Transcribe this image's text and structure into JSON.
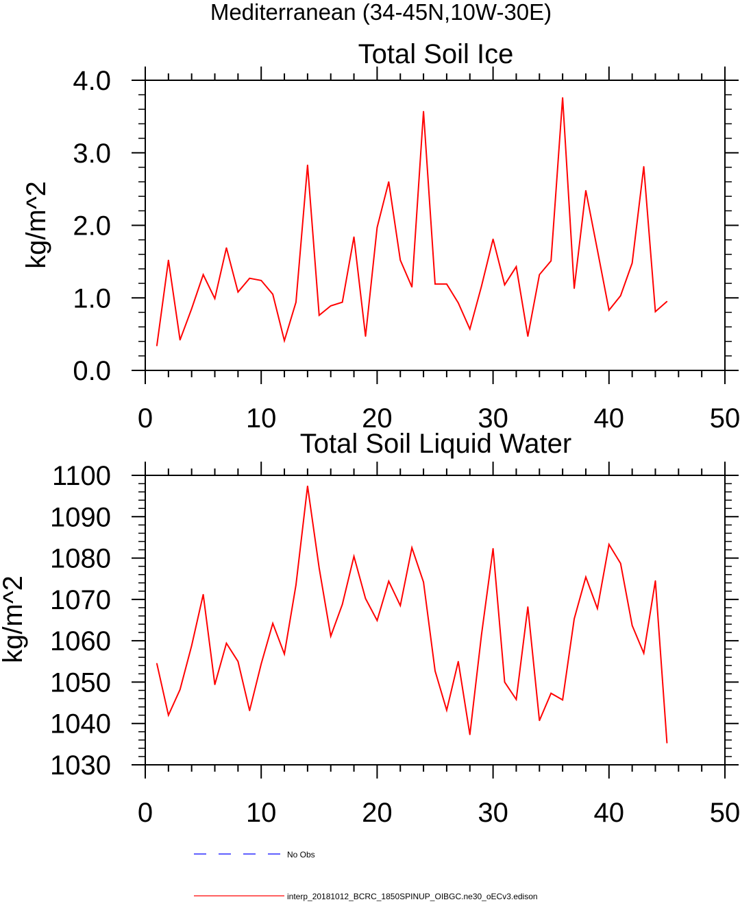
{
  "figure_title": "Mediterranean (34-45N,10W-30E)",
  "colors": {
    "model_line": "#ff0000",
    "obs_line": "#0000ff",
    "axes": "#000000",
    "background": "#ffffff"
  },
  "chart_data": [
    {
      "type": "line",
      "title": "Total Soil Ice",
      "xlabel": "",
      "ylabel": "kg/m^2",
      "xlim": [
        0,
        50
      ],
      "ylim": [
        0,
        4
      ],
      "xticks": [
        "0",
        "10",
        "20",
        "30",
        "40",
        "50"
      ],
      "yticks": [
        "0.0",
        "1.0",
        "2.0",
        "3.0",
        "4.0"
      ],
      "grid": false,
      "series": [
        {
          "name": "interp_20181012_BCRC_1850SPINUP_OIBGC.ne30_oECv3.edison",
          "color": "#ff0000",
          "x": [
            1,
            2,
            3,
            4,
            5,
            6,
            7,
            8,
            9,
            10,
            11,
            12,
            13,
            14,
            15,
            16,
            17,
            18,
            19,
            20,
            21,
            22,
            23,
            24,
            25,
            26,
            27,
            28,
            29,
            30,
            31,
            32,
            33,
            34,
            35,
            36,
            37,
            38,
            39,
            40,
            41,
            42,
            43,
            44,
            45
          ],
          "values": [
            0.34,
            1.52,
            0.42,
            0.85,
            1.32,
            0.99,
            1.69,
            1.08,
            1.27,
            1.24,
            1.05,
            0.41,
            0.94,
            2.83,
            0.76,
            0.89,
            0.94,
            1.84,
            0.47,
            1.97,
            2.6,
            1.52,
            1.15,
            3.57,
            1.19,
            1.19,
            0.93,
            0.57,
            1.16,
            1.81,
            1.18,
            1.43,
            0.47,
            1.32,
            1.51,
            3.76,
            1.13,
            2.48,
            1.66,
            0.83,
            1.03,
            1.48,
            2.81,
            0.81,
            0.95
          ]
        }
      ]
    },
    {
      "type": "line",
      "title": "Total Soil Liquid Water",
      "xlabel": "",
      "ylabel": "kg/m^2",
      "xlim": [
        0,
        50
      ],
      "ylim": [
        1030,
        1100
      ],
      "xticks": [
        "0",
        "10",
        "20",
        "30",
        "40",
        "50"
      ],
      "yticks": [
        "1030",
        "1040",
        "1050",
        "1060",
        "1070",
        "1080",
        "1090",
        "1100"
      ],
      "grid": false,
      "series": [
        {
          "name": "interp_20181012_BCRC_1850SPINUP_OIBGC.ne30_oECv3.edison",
          "color": "#ff0000",
          "x": [
            1,
            2,
            3,
            4,
            5,
            6,
            7,
            8,
            9,
            10,
            11,
            12,
            13,
            14,
            15,
            16,
            17,
            18,
            19,
            20,
            21,
            22,
            23,
            24,
            25,
            26,
            27,
            28,
            29,
            30,
            31,
            32,
            33,
            34,
            35,
            36,
            37,
            38,
            39,
            40,
            41,
            42,
            43,
            44,
            45
          ],
          "values": [
            1054.5,
            1042.0,
            1048.2,
            1058.8,
            1071.2,
            1049.4,
            1059.4,
            1055.0,
            1043.1,
            1054.4,
            1064.2,
            1056.8,
            1073.5,
            1097.4,
            1077.6,
            1061.1,
            1068.8,
            1080.4,
            1070.2,
            1064.9,
            1074.4,
            1068.5,
            1082.5,
            1074.2,
            1052.7,
            1043.2,
            1055.0,
            1037.3,
            1061.4,
            1082.3,
            1050.0,
            1045.8,
            1068.2,
            1040.7,
            1047.3,
            1045.7,
            1065.3,
            1075.4,
            1067.8,
            1083.3,
            1078.7,
            1063.7,
            1057.0,
            1074.5,
            1035.3
          ]
        }
      ]
    }
  ],
  "legend": {
    "placement": "bottom",
    "entries": [
      {
        "label": "No Obs",
        "color": "#0000ff",
        "style": "dashed"
      },
      {
        "label": "interp_20181012_BCRC_1850SPINUP_OIBGC.ne30_oECv3.edison",
        "color": "#ff0000",
        "style": "solid"
      }
    ]
  }
}
